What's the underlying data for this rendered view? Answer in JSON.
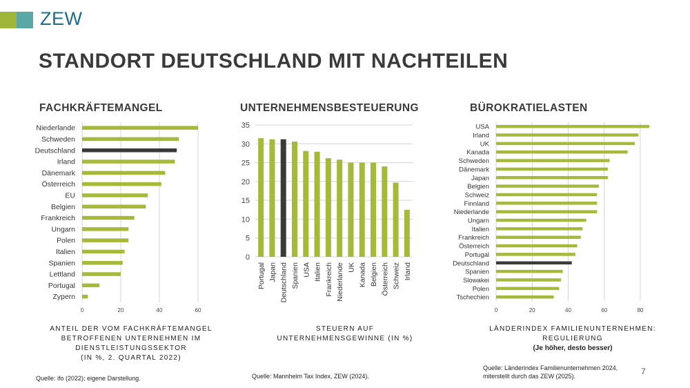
{
  "logo": {
    "text": "ZEW",
    "colors": [
      "#9fb53a",
      "#5aa7a6"
    ]
  },
  "title": "STANDORT DEUTSCHLAND MIT NACHTEILEN",
  "colors": {
    "bar": "#a6b93b",
    "highlight": "#3a3a3a",
    "grid": "#d4d4d4"
  },
  "page_number": "7",
  "chart_data": [
    {
      "id": "fachkraeftemangel",
      "type": "bar",
      "orientation": "horizontal",
      "title": "FACHKRÄFTEMANGEL",
      "categories": [
        "Niederlande",
        "Schweden",
        "Deutschland",
        "Irland",
        "Dänemark",
        "Österreich",
        "EU",
        "Belgien",
        "Frankreich",
        "Ungarn",
        "Polen",
        "Italien",
        "Spanien",
        "Lettland",
        "Portugal",
        "Zypern"
      ],
      "values": [
        60,
        50,
        49,
        48,
        43,
        41,
        34,
        33,
        27,
        24,
        24,
        22,
        21,
        20,
        9,
        3
      ],
      "highlight": "Deutschland",
      "xlim": [
        0,
        60
      ],
      "ticks": [
        0,
        20,
        40,
        60
      ],
      "caption": [
        "ANTEIL DER VOM FACHKRÄFTEMANGEL",
        "BETROFFENEN UNTERNEHMEN IM",
        "DIENSTLEISTUNGSSEKTOR",
        "(IN %, 2. QUARTAL 2022)"
      ],
      "source": "Quelle: ifo (2022); eigene Darstellung."
    },
    {
      "id": "unternehmensbesteuerung",
      "type": "bar",
      "orientation": "vertical",
      "title": "UNTERNEHMENSBESTEUERUNG",
      "categories": [
        "Portugal",
        "Japan",
        "Deutschland",
        "Spanien",
        "USA",
        "Italien",
        "Frankreich",
        "Niederlande",
        "UK",
        "Kanada",
        "Belgien",
        "Österreich",
        "Schweiz",
        "Irland"
      ],
      "values": [
        31.5,
        31.2,
        31.2,
        30.6,
        28.1,
        27.9,
        26.2,
        25.8,
        25.0,
        25.0,
        25.0,
        24.0,
        19.7,
        12.5
      ],
      "highlight": "Deutschland",
      "ylim": [
        0,
        35
      ],
      "ticks": [
        0,
        5,
        10,
        15,
        20,
        25,
        30,
        35
      ],
      "caption": [
        "STEUERN AUF",
        "UNTERNEHMENSGEWINNE (IN %)"
      ],
      "source": "Quelle: Mannheim Tax Index, ZEW (2024)."
    },
    {
      "id": "buerokratielasten",
      "type": "bar",
      "orientation": "horizontal",
      "title": "BÜROKRATIELASTEN",
      "categories": [
        "USA",
        "Irland",
        "UK",
        "Kanada",
        "Schweden",
        "Dänemark",
        "Japan",
        "Belgien",
        "Schweiz",
        "Finnland",
        "Niederlande",
        "Ungarn",
        "Italien",
        "Frankreich",
        "Österreich",
        "Portugal",
        "Deutschland",
        "Spanien",
        "Slowakei",
        "Polen",
        "Tschechien"
      ],
      "values": [
        85,
        79,
        77,
        73,
        63,
        62,
        62,
        57,
        56,
        56,
        56,
        50,
        48,
        47,
        45,
        44,
        42,
        37,
        36,
        35,
        32
      ],
      "highlight": "Deutschland",
      "xlim": [
        0,
        85
      ],
      "ticks": [
        0,
        20,
        40,
        60,
        80
      ],
      "caption": [
        "LÄNDERINDEX FAMILIENUNTERNEHMEN:",
        "REGULIERUNG"
      ],
      "caption_sub": "(Je höher, desto besser)",
      "source": [
        "Quelle: Länderindex Familienunternehmen 2024,",
        "miterstellt durch das ZEW (2025)."
      ]
    }
  ]
}
